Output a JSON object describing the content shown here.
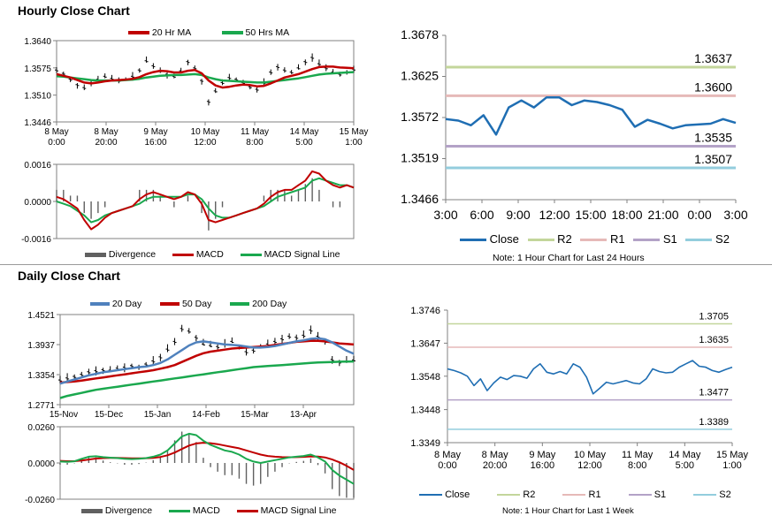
{
  "hourly_title": "Hourly Close Chart",
  "daily_title": "Daily Close Chart",
  "colors": {
    "red": "#c00000",
    "green": "#1aa84e",
    "blue": "#1f6eb3",
    "ma20": "#4f81bd",
    "r2": "#c3d69b",
    "r1": "#e6b9b8",
    "s1": "#b3a2c7",
    "s2": "#93cddd",
    "grey": "#808080"
  },
  "hourly_legend": [
    "20 Hr MA",
    "50 Hrs MA"
  ],
  "hourly_macd_legend": [
    "Divergence",
    "MACD",
    "MACD Signal Line"
  ],
  "daily_legend": [
    "20 Day",
    "50 Day",
    "200 Day"
  ],
  "daily_macd_legend": [
    "Divergence",
    "MACD",
    "MACD Signal Line"
  ],
  "pivot24_legend": [
    "Close",
    "R2",
    "R1",
    "S1",
    "S2"
  ],
  "pivot24_note": "Note: 1 Hour Chart for Last 24 Hours",
  "pivotweek_legend": [
    "Close",
    "R2",
    "R1",
    "S1",
    "S2"
  ],
  "pivotweek_note": "Note: 1 Hour Chart for Last 1 Week",
  "chart_data": [
    {
      "id": "hourly-price",
      "type": "line",
      "title": "Hourly Close Chart",
      "yticks": [
        "1.3640",
        "1.3575",
        "1.3510",
        "1.3446"
      ],
      "ylim": [
        1.3446,
        1.364
      ],
      "xticks": [
        [
          "8 May",
          "0:00"
        ],
        [
          "8 May",
          "20:00"
        ],
        [
          "9 May",
          "16:00"
        ],
        [
          "10 May",
          "12:00"
        ],
        [
          "11 May",
          "8:00"
        ],
        [
          "14 May",
          "5:00"
        ],
        [
          "15 May",
          "1:00"
        ]
      ],
      "series": [
        {
          "name": "Price",
          "values": [
            1.357,
            1.3562,
            1.3548,
            1.3535,
            1.3528,
            1.354,
            1.3548,
            1.3555,
            1.355,
            1.3545,
            1.3548,
            1.3555,
            1.357,
            1.3592,
            1.358,
            1.3568,
            1.356,
            1.3555,
            1.3568,
            1.359,
            1.3575,
            1.3545,
            1.3495,
            1.352,
            1.354,
            1.3552,
            1.3548,
            1.354,
            1.353,
            1.3524,
            1.354,
            1.3565,
            1.3578,
            1.357,
            1.3565,
            1.3575,
            1.359,
            1.36,
            1.3585,
            1.3575,
            1.3565,
            1.356,
            1.3565,
            1.3572
          ]
        },
        {
          "name": "20 Hr MA",
          "values": [
            1.356,
            1.3556,
            1.3552,
            1.3546,
            1.354,
            1.3538,
            1.354,
            1.3543,
            1.3545,
            1.3546,
            1.3547,
            1.3549,
            1.3553,
            1.356,
            1.3565,
            1.3568,
            1.3567,
            1.3564,
            1.3564,
            1.3568,
            1.357,
            1.3562,
            1.3545,
            1.3533,
            1.3528,
            1.353,
            1.3533,
            1.3535,
            1.3534,
            1.3531,
            1.3532,
            1.3538,
            1.3545,
            1.3552,
            1.3556,
            1.356,
            1.3566,
            1.3572,
            1.3577,
            1.3578,
            1.3578,
            1.3576,
            1.3575,
            1.3574
          ]
        },
        {
          "name": "50 Hrs MA",
          "values": [
            1.3555,
            1.3554,
            1.3552,
            1.355,
            1.3548,
            1.3546,
            1.3545,
            1.3545,
            1.3545,
            1.3545,
            1.3546,
            1.3547,
            1.3549,
            1.3552,
            1.3554,
            1.3556,
            1.3557,
            1.3558,
            1.3558,
            1.3559,
            1.356,
            1.3558,
            1.3552,
            1.3548,
            1.3545,
            1.3544,
            1.3543,
            1.3542,
            1.3541,
            1.354,
            1.354,
            1.3542,
            1.3544,
            1.3546,
            1.3548,
            1.355,
            1.3553,
            1.3556,
            1.3559,
            1.3561,
            1.3562,
            1.3563,
            1.3564,
            1.3565
          ]
        }
      ]
    },
    {
      "id": "hourly-macd",
      "type": "line",
      "yticks": [
        "0.0016",
        "0.0000",
        "-0.0016"
      ],
      "ylim": [
        -0.0016,
        0.0016
      ],
      "series": [
        {
          "name": "MACD",
          "values": [
            0.0002,
            0.0001,
            -0.0001,
            -0.0003,
            -0.0008,
            -0.0012,
            -0.001,
            -0.0007,
            -0.0005,
            -0.0004,
            -0.0003,
            -0.0002,
            0.0001,
            0.0003,
            0.0004,
            0.0003,
            0.0002,
            0.0001,
            0.0002,
            0.0004,
            0.0003,
            -0.0001,
            -0.0008,
            -0.0009,
            -0.0008,
            -0.0007,
            -0.0006,
            -0.0005,
            -0.0004,
            -0.0003,
            -0.0001,
            0.0002,
            0.0004,
            0.0005,
            0.0005,
            0.0007,
            0.0009,
            0.0013,
            0.0012,
            0.0009,
            0.0007,
            0.0006,
            0.0007,
            0.0006
          ]
        },
        {
          "name": "MACD Signal Line",
          "values": [
            0.0,
            -0.0001,
            -0.0002,
            -0.0004,
            -0.0006,
            -0.0009,
            -0.0008,
            -0.0006,
            -0.0005,
            -0.0004,
            -0.0003,
            -0.0002,
            -0.0001,
            0.0001,
            0.0002,
            0.0002,
            0.0002,
            0.0002,
            0.0002,
            0.0003,
            0.0003,
            0.0001,
            -0.0003,
            -0.0006,
            -0.0007,
            -0.0007,
            -0.0006,
            -0.0005,
            -0.0004,
            -0.0003,
            -0.0002,
            0.0,
            0.0002,
            0.0003,
            0.0004,
            0.0005,
            0.0006,
            0.0009,
            0.001,
            0.0009,
            0.0008,
            0.0007,
            0.0007,
            0.0006
          ]
        }
      ]
    },
    {
      "id": "pivot-24h",
      "type": "line",
      "yticks": [
        "1.3678",
        "1.3625",
        "1.3572",
        "1.3519",
        "1.3466"
      ],
      "ylim": [
        1.3466,
        1.3678
      ],
      "xticks": [
        "3:00",
        "6:00",
        "9:00",
        "12:00",
        "15:00",
        "18:00",
        "21:00",
        "0:00",
        "3:00"
      ],
      "levels": [
        {
          "name": "R2",
          "value": 1.3637,
          "label": "1.3637"
        },
        {
          "name": "R1",
          "value": 1.36,
          "label": "1.3600"
        },
        {
          "name": "S1",
          "value": 1.3535,
          "label": "1.3535"
        },
        {
          "name": "S2",
          "value": 1.3507,
          "label": "1.3507"
        }
      ],
      "series": [
        {
          "name": "Close",
          "values": [
            1.357,
            1.3568,
            1.3562,
            1.3575,
            1.355,
            1.3585,
            1.3594,
            1.3585,
            1.3598,
            1.3598,
            1.3588,
            1.3594,
            1.3592,
            1.3588,
            1.3582,
            1.356,
            1.3569,
            1.3564,
            1.3558,
            1.3562,
            1.3563,
            1.3564,
            1.357,
            1.3565
          ]
        }
      ]
    },
    {
      "id": "daily-price",
      "type": "line",
      "title": "Daily Close Chart",
      "yticks": [
        "1.4521",
        "1.3937",
        "1.3354",
        "1.2771"
      ],
      "ylim": [
        1.2771,
        1.4521
      ],
      "xticks": [
        "15-Nov",
        "15-Dec",
        "15-Jan",
        "14-Feb",
        "15-Mar",
        "13-Apr"
      ],
      "series": [
        {
          "name": "Price",
          "values": [
            1.325,
            1.329,
            1.332,
            1.336,
            1.341,
            1.343,
            1.345,
            1.344,
            1.348,
            1.35,
            1.353,
            1.351,
            1.356,
            1.362,
            1.37,
            1.385,
            1.4,
            1.425,
            1.42,
            1.408,
            1.395,
            1.392,
            1.39,
            1.395,
            1.4,
            1.388,
            1.38,
            1.383,
            1.39,
            1.395,
            1.4,
            1.405,
            1.41,
            1.408,
            1.412,
            1.422,
            1.41,
            1.4,
            1.365,
            1.36,
            1.362,
            1.364
          ]
        },
        {
          "name": "20 Day",
          "values": [
            1.318,
            1.322,
            1.326,
            1.33,
            1.334,
            1.337,
            1.34,
            1.342,
            1.344,
            1.346,
            1.348,
            1.35,
            1.351,
            1.354,
            1.358,
            1.365,
            1.374,
            1.383,
            1.392,
            1.398,
            1.4,
            1.398,
            1.396,
            1.394,
            1.393,
            1.392,
            1.39,
            1.388,
            1.388,
            1.389,
            1.391,
            1.394,
            1.397,
            1.4,
            1.402,
            1.405,
            1.406,
            1.404,
            1.398,
            1.39,
            1.382,
            1.376
          ]
        },
        {
          "name": "50 Day",
          "values": [
            1.32,
            1.321,
            1.322,
            1.324,
            1.326,
            1.328,
            1.33,
            1.332,
            1.334,
            1.336,
            1.338,
            1.34,
            1.342,
            1.344,
            1.347,
            1.35,
            1.354,
            1.36,
            1.366,
            1.372,
            1.377,
            1.38,
            1.382,
            1.384,
            1.386,
            1.387,
            1.388,
            1.389,
            1.39,
            1.391,
            1.393,
            1.395,
            1.397,
            1.399,
            1.4,
            1.401,
            1.401,
            1.4,
            1.398,
            1.396,
            1.395,
            1.394
          ]
        },
        {
          "name": "200 Day",
          "values": [
            1.29,
            1.294,
            1.297,
            1.3,
            1.303,
            1.306,
            1.308,
            1.31,
            1.312,
            1.314,
            1.316,
            1.318,
            1.32,
            1.322,
            1.324,
            1.326,
            1.328,
            1.33,
            1.332,
            1.334,
            1.336,
            1.338,
            1.34,
            1.342,
            1.344,
            1.346,
            1.348,
            1.35,
            1.351,
            1.352,
            1.353,
            1.354,
            1.355,
            1.356,
            1.357,
            1.358,
            1.359,
            1.3595,
            1.36,
            1.3605,
            1.3608,
            1.361
          ]
        }
      ]
    },
    {
      "id": "daily-macd",
      "type": "line",
      "yticks": [
        "0.0260",
        "0.0000",
        "-0.0260"
      ],
      "ylim": [
        -0.026,
        0.026
      ],
      "series": [
        {
          "name": "MACD",
          "values": [
            0.001,
            0.0008,
            0.0012,
            0.003,
            0.0045,
            0.0048,
            0.0042,
            0.0038,
            0.0035,
            0.003,
            0.0028,
            0.003,
            0.0035,
            0.0045,
            0.006,
            0.009,
            0.014,
            0.019,
            0.021,
            0.02,
            0.016,
            0.013,
            0.011,
            0.009,
            0.008,
            0.006,
            0.003,
            0.001,
            0.0,
            0.001,
            0.002,
            0.003,
            0.004,
            0.0045,
            0.005,
            0.006,
            0.004,
            0.001,
            -0.005,
            -0.009,
            -0.012,
            -0.015
          ]
        },
        {
          "name": "MACD Signal Line",
          "values": [
            0.0015,
            0.0013,
            0.0013,
            0.0018,
            0.0025,
            0.0032,
            0.0035,
            0.0036,
            0.0036,
            0.0035,
            0.0033,
            0.0033,
            0.0034,
            0.0037,
            0.0043,
            0.0055,
            0.0075,
            0.01,
            0.0125,
            0.014,
            0.0145,
            0.0142,
            0.0135,
            0.0125,
            0.0115,
            0.0105,
            0.009,
            0.0075,
            0.006,
            0.005,
            0.0045,
            0.0042,
            0.0041,
            0.0042,
            0.0044,
            0.0047,
            0.0046,
            0.004,
            0.0025,
            0.0005,
            -0.002,
            -0.005
          ]
        }
      ]
    },
    {
      "id": "pivot-week",
      "type": "line",
      "yticks": [
        "1.3746",
        "1.3647",
        "1.3548",
        "1.3448",
        "1.3349"
      ],
      "ylim": [
        1.3349,
        1.3746
      ],
      "xticks": [
        [
          "8 May",
          "0:00"
        ],
        [
          "8 May",
          "20:00"
        ],
        [
          "9 May",
          "16:00"
        ],
        [
          "10 May",
          "12:00"
        ],
        [
          "11 May",
          "8:00"
        ],
        [
          "14 May",
          "5:00"
        ],
        [
          "15 May",
          "1:00"
        ]
      ],
      "levels": [
        {
          "name": "R2",
          "value": 1.3705,
          "label": "1.3705"
        },
        {
          "name": "R1",
          "value": 1.3635,
          "label": "1.3635"
        },
        {
          "name": "S1",
          "value": 1.3477,
          "label": "1.3477"
        },
        {
          "name": "S2",
          "value": 1.3389,
          "label": "1.3389"
        }
      ],
      "series": [
        {
          "name": "Close",
          "values": [
            1.357,
            1.3565,
            1.3558,
            1.3548,
            1.352,
            1.354,
            1.3505,
            1.3528,
            1.3545,
            1.3538,
            1.355,
            1.3548,
            1.3542,
            1.357,
            1.3585,
            1.356,
            1.3555,
            1.3562,
            1.3555,
            1.3585,
            1.3575,
            1.3545,
            1.3495,
            1.3512,
            1.353,
            1.3525,
            1.353,
            1.3535,
            1.3528,
            1.3525,
            1.354,
            1.357,
            1.3562,
            1.3558,
            1.356,
            1.3575,
            1.3585,
            1.3595,
            1.3578,
            1.3575,
            1.3565,
            1.356,
            1.3568,
            1.3575
          ]
        }
      ]
    }
  ]
}
